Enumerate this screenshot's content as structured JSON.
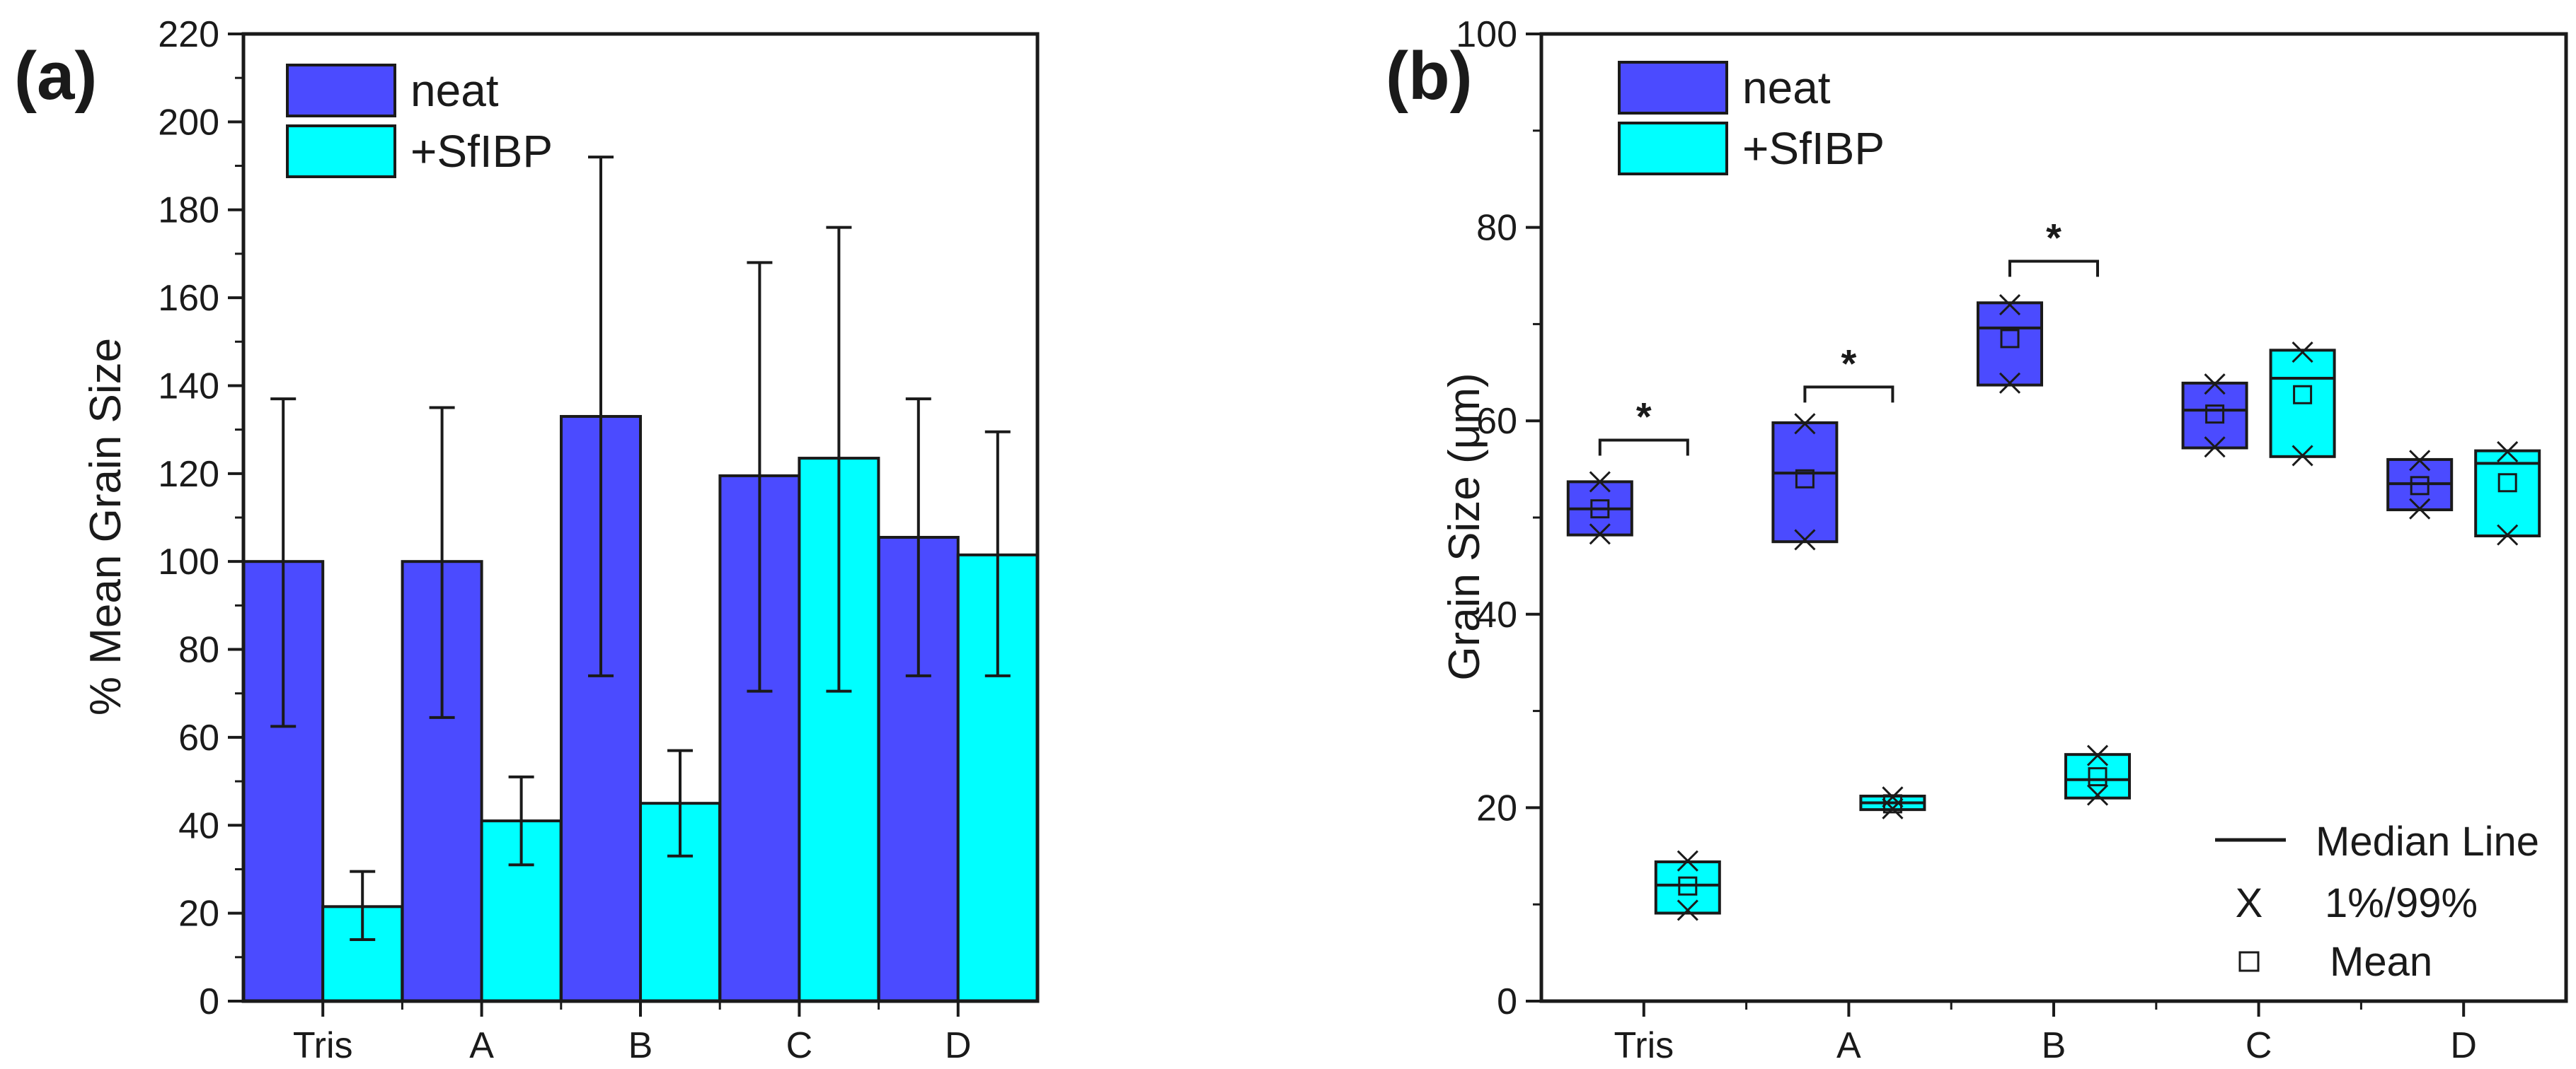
{
  "colors": {
    "neat": "#4b4bff",
    "sfibp": "#00ffff",
    "outline": "#1a1a1a",
    "background": "#ffffff"
  },
  "chart_data": [
    {
      "type": "bar",
      "panel_label": "(a)",
      "title": "",
      "xlabel": "",
      "ylabel": "% Mean Grain Size",
      "ylim": [
        0,
        220
      ],
      "yticks": [
        "0",
        "20",
        "40",
        "60",
        "80",
        "100",
        "120",
        "140",
        "160",
        "180",
        "200",
        "220"
      ],
      "categories": [
        "Tris",
        "A",
        "B",
        "C",
        "D"
      ],
      "series": [
        {
          "name": "neat",
          "values": [
            100,
            100,
            133,
            119.5,
            105.5
          ],
          "err_low": [
            62.5,
            64.5,
            74,
            70.5,
            74
          ],
          "err_high": [
            137,
            135,
            192,
            168,
            137
          ]
        },
        {
          "name": "+SfIBP",
          "values": [
            21.5,
            41,
            45,
            123.5,
            101.5
          ],
          "err_low": [
            14,
            31,
            33,
            70.5,
            74
          ],
          "err_high": [
            29.5,
            51,
            57,
            176,
            129.5
          ]
        }
      ],
      "legend": {
        "position": "top-left",
        "entries": [
          "neat",
          "+SfIBP"
        ]
      }
    },
    {
      "type": "box",
      "panel_label": "(b)",
      "title": "",
      "xlabel": "",
      "ylabel": "Grain Size (μm)",
      "ylim": [
        0,
        100
      ],
      "yticks": [
        "0",
        "20",
        "40",
        "60",
        "80",
        "100"
      ],
      "categories": [
        "Tris",
        "A",
        "B",
        "C",
        "D"
      ],
      "series": [
        {
          "name": "neat",
          "q1": [
            48.2,
            47.5,
            63.7,
            57.2,
            50.8
          ],
          "q3": [
            53.7,
            59.8,
            72.2,
            63.9,
            56
          ],
          "median": [
            50.9,
            54.6,
            69.6,
            61.1,
            53.5
          ],
          "mean": [
            50.9,
            54,
            68.5,
            60.7,
            53.3
          ],
          "p1": [
            48.3,
            47.7,
            63.9,
            57.3,
            50.9
          ],
          "p99": [
            53.7,
            59.7,
            72,
            63.8,
            55.9
          ]
        },
        {
          "name": "+SfIBP",
          "q1": [
            9.1,
            19.8,
            21,
            56.3,
            48.1
          ],
          "q3": [
            14.4,
            21.2,
            25.5,
            67.3,
            56.9
          ],
          "median": [
            12,
            20.5,
            22.9,
            64.4,
            55.6
          ],
          "mean": [
            11.9,
            20.4,
            23.2,
            62.7,
            53.6
          ],
          "p1": [
            9.4,
            19.9,
            21.3,
            56.4,
            48.2
          ],
          "p99": [
            14.5,
            21.1,
            25.4,
            67.1,
            56.8
          ]
        }
      ],
      "significance": [
        {
          "category": "Tris",
          "label": "*",
          "y": 58
        },
        {
          "category": "A",
          "label": "*",
          "y": 63.5
        },
        {
          "category": "B",
          "label": "*",
          "y": 76.5
        }
      ],
      "legend": {
        "position": "top-left",
        "entries": [
          "neat",
          "+SfIBP"
        ]
      },
      "key": {
        "position": "bottom-right",
        "median_label": "Median Line",
        "percentile_symbol": "X",
        "percentile_label": "1%/99%",
        "mean_label": "Mean"
      }
    }
  ]
}
